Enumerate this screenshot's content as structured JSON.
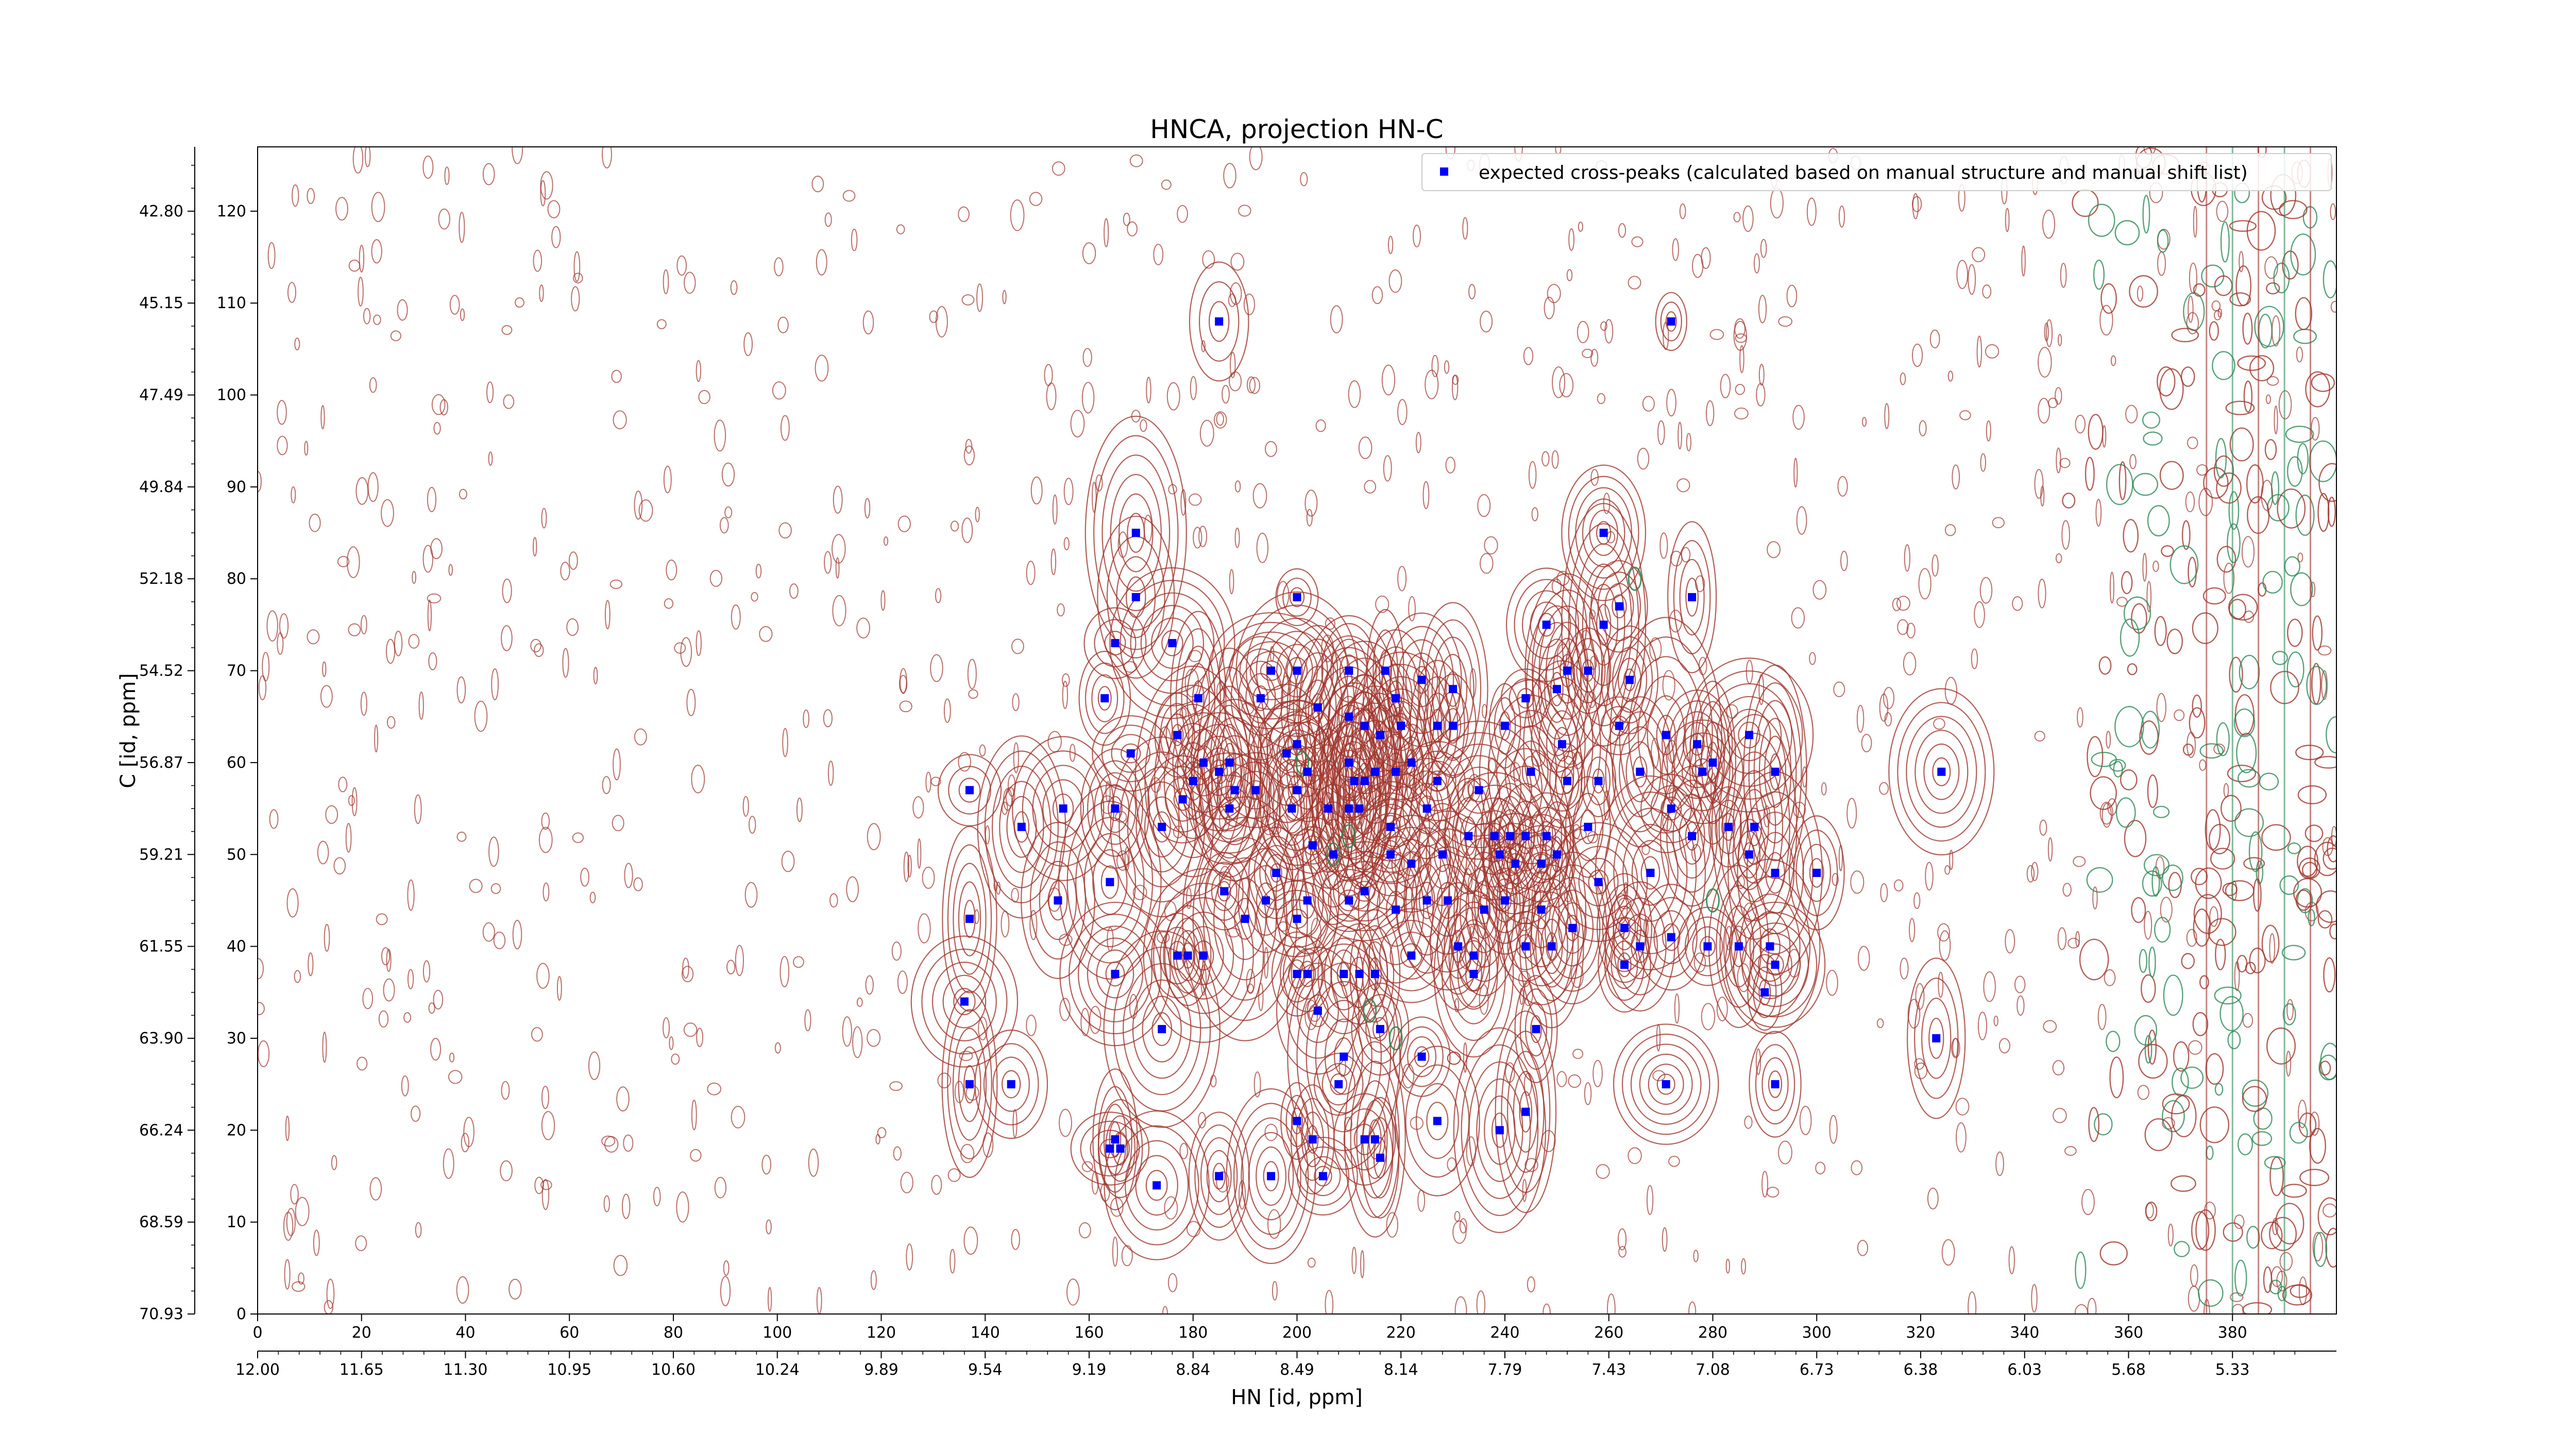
{
  "chart_data": {
    "type": "scatter",
    "title": "HNCA, projection HN-C",
    "xlabel": "HN [id, ppm]",
    "ylabel": "C [id, ppm]",
    "xlim": [
      0,
      400
    ],
    "ylim": [
      0,
      127
    ],
    "grid": false,
    "legend": {
      "placement": "top-right",
      "entries": [
        "expected cross-peaks (calculated based on manual structure and manual shift list)"
      ]
    },
    "colors": {
      "markers": "#0000ff",
      "contour_positive": "#a0342c",
      "contour_negative": "#2e8b57"
    },
    "x_ticks": [
      "0",
      "20",
      "40",
      "60",
      "80",
      "100",
      "120",
      "140",
      "160",
      "180",
      "200",
      "220",
      "240",
      "260",
      "280",
      "300",
      "320",
      "340",
      "360",
      "380"
    ],
    "y_ticks": [
      "0",
      "10",
      "20",
      "30",
      "40",
      "50",
      "60",
      "70",
      "80",
      "90",
      "100",
      "110",
      "120"
    ],
    "x_secondary_ticks": [
      "12.00",
      "11.65",
      "11.30",
      "10.95",
      "10.60",
      "10.24",
      "9.89",
      "9.54",
      "9.19",
      "8.84",
      "8.49",
      "8.14",
      "7.79",
      "7.43",
      "7.08",
      "6.73",
      "6.38",
      "6.03",
      "5.68",
      "5.33"
    ],
    "y_secondary_ticks": [
      "70.93",
      "68.59",
      "66.24",
      "63.90",
      "61.55",
      "59.21",
      "56.87",
      "54.52",
      "52.18",
      "49.84",
      "47.49",
      "45.15",
      "42.80"
    ],
    "series": [
      {
        "name": "expected cross-peaks (calculated based on manual structure and manual shift list)",
        "points": [
          [
            185,
            108
          ],
          [
            272,
            108
          ],
          [
            169,
            85
          ],
          [
            259,
            85
          ],
          [
            169,
            78
          ],
          [
            200,
            78
          ],
          [
            276,
            78
          ],
          [
            165,
            73
          ],
          [
            176,
            73
          ],
          [
            248,
            75
          ],
          [
            259,
            75
          ],
          [
            195,
            70
          ],
          [
            200,
            70
          ],
          [
            210,
            70
          ],
          [
            217,
            70
          ],
          [
            219,
            67
          ],
          [
            224,
            69
          ],
          [
            230,
            68
          ],
          [
            244,
            67
          ],
          [
            250,
            68
          ],
          [
            252,
            70
          ],
          [
            256,
            70
          ],
          [
            264,
            69
          ],
          [
            163,
            67
          ],
          [
            181,
            67
          ],
          [
            193,
            67
          ],
          [
            204,
            66
          ],
          [
            210,
            65
          ],
          [
            213,
            64
          ],
          [
            216,
            63
          ],
          [
            220,
            64
          ],
          [
            227,
            64
          ],
          [
            230,
            64
          ],
          [
            240,
            64
          ],
          [
            251,
            62
          ],
          [
            262,
            64
          ],
          [
            271,
            63
          ],
          [
            277,
            62
          ],
          [
            287,
            63
          ],
          [
            177,
            63
          ],
          [
            168,
            61
          ],
          [
            198,
            61
          ],
          [
            200,
            62
          ],
          [
            182,
            60
          ],
          [
            187,
            60
          ],
          [
            202,
            59
          ],
          [
            210,
            60
          ],
          [
            211,
            58
          ],
          [
            213,
            58
          ],
          [
            215,
            59
          ],
          [
            219,
            59
          ],
          [
            222,
            60
          ],
          [
            227,
            58
          ],
          [
            245,
            59
          ],
          [
            252,
            58
          ],
          [
            258,
            58
          ],
          [
            266,
            59
          ],
          [
            278,
            59
          ],
          [
            280,
            60
          ],
          [
            292,
            59
          ],
          [
            324,
            59
          ],
          [
            185,
            59
          ],
          [
            188,
            57
          ],
          [
            192,
            57
          ],
          [
            180,
            58
          ],
          [
            178,
            56
          ],
          [
            155,
            55
          ],
          [
            165,
            55
          ],
          [
            174,
            53
          ],
          [
            187,
            55
          ],
          [
            199,
            55
          ],
          [
            206,
            55
          ],
          [
            210,
            55
          ],
          [
            212,
            55
          ],
          [
            218,
            53
          ],
          [
            233,
            52
          ],
          [
            238,
            52
          ],
          [
            241,
            52
          ],
          [
            244,
            52
          ],
          [
            248,
            52
          ],
          [
            256,
            53
          ],
          [
            272,
            55
          ],
          [
            283,
            53
          ],
          [
            288,
            53
          ],
          [
            137,
            57
          ],
          [
            147,
            53
          ],
          [
            164,
            47
          ],
          [
            186,
            46
          ],
          [
            196,
            48
          ],
          [
            203,
            51
          ],
          [
            207,
            50
          ],
          [
            218,
            50
          ],
          [
            222,
            49
          ],
          [
            228,
            50
          ],
          [
            239,
            50
          ],
          [
            242,
            49
          ],
          [
            247,
            49
          ],
          [
            250,
            50
          ],
          [
            268,
            48
          ],
          [
            276,
            52
          ],
          [
            287,
            50
          ],
          [
            292,
            48
          ],
          [
            300,
            48
          ],
          [
            190,
            43
          ],
          [
            194,
            45
          ],
          [
            200,
            43
          ],
          [
            202,
            45
          ],
          [
            210,
            45
          ],
          [
            213,
            46
          ],
          [
            219,
            44
          ],
          [
            225,
            45
          ],
          [
            229,
            45
          ],
          [
            236,
            44
          ],
          [
            240,
            45
          ],
          [
            247,
            44
          ],
          [
            253,
            42
          ],
          [
            263,
            42
          ],
          [
            266,
            40
          ],
          [
            272,
            41
          ],
          [
            279,
            40
          ],
          [
            292,
            38
          ],
          [
            137,
            43
          ],
          [
            154,
            45
          ],
          [
            165,
            37
          ],
          [
            177,
            39
          ],
          [
            179,
            39
          ],
          [
            182,
            39
          ],
          [
            200,
            37
          ],
          [
            202,
            37
          ],
          [
            209,
            37
          ],
          [
            212,
            37
          ],
          [
            215,
            37
          ],
          [
            222,
            39
          ],
          [
            231,
            40
          ],
          [
            234,
            39
          ],
          [
            244,
            40
          ],
          [
            249,
            40
          ],
          [
            263,
            38
          ],
          [
            285,
            40
          ],
          [
            291,
            40
          ],
          [
            234,
            37
          ],
          [
            204,
            33
          ],
          [
            174,
            31
          ],
          [
            136,
            34
          ],
          [
            137,
            25
          ],
          [
            145,
            25
          ],
          [
            209,
            28
          ],
          [
            216,
            31
          ],
          [
            224,
            28
          ],
          [
            246,
            31
          ],
          [
            271,
            25
          ],
          [
            292,
            25
          ],
          [
            208,
            25
          ],
          [
            165,
            19
          ],
          [
            164,
            18
          ],
          [
            166,
            18
          ],
          [
            200,
            21
          ],
          [
            203,
            19
          ],
          [
            213,
            19
          ],
          [
            216,
            17
          ],
          [
            227,
            21
          ],
          [
            239,
            20
          ],
          [
            244,
            22
          ],
          [
            173,
            14
          ],
          [
            185,
            15
          ],
          [
            195,
            15
          ],
          [
            205,
            15
          ],
          [
            215,
            19
          ],
          [
            323,
            30
          ],
          [
            290,
            35
          ],
          [
            262,
            77
          ],
          [
            200,
            57
          ],
          [
            225,
            55
          ],
          [
            235,
            57
          ],
          [
            258,
            47
          ]
        ]
      }
    ]
  }
}
